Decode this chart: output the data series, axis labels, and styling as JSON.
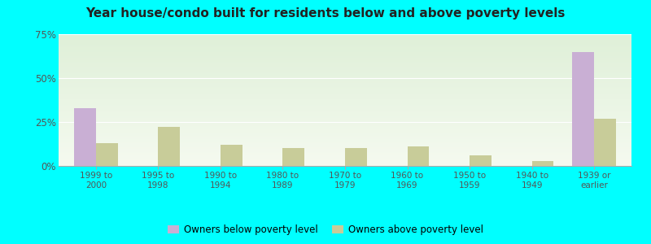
{
  "title": "Year house/condo built for residents below and above poverty levels",
  "categories": [
    "1999 to\n2000",
    "1995 to\n1998",
    "1990 to\n1994",
    "1980 to\n1989",
    "1970 to\n1979",
    "1960 to\n1969",
    "1950 to\n1959",
    "1940 to\n1949",
    "1939 or\nearlier"
  ],
  "below_poverty": [
    33,
    0,
    0,
    0,
    0,
    0,
    0,
    0,
    65
  ],
  "above_poverty": [
    13,
    22,
    12,
    10,
    10,
    11,
    6,
    3,
    27
  ],
  "below_color": "#c9afd4",
  "above_color": "#c8cc99",
  "ylim": [
    0,
    75
  ],
  "yticks": [
    0,
    25,
    50,
    75
  ],
  "outer_background": "#00ffff",
  "bar_width": 0.35,
  "title_fontsize": 11,
  "legend_below_label": "Owners below poverty level",
  "legend_above_label": "Owners above poverty level",
  "bg_top_color": "#dff0d8",
  "bg_bottom_color": "#f5faf0"
}
